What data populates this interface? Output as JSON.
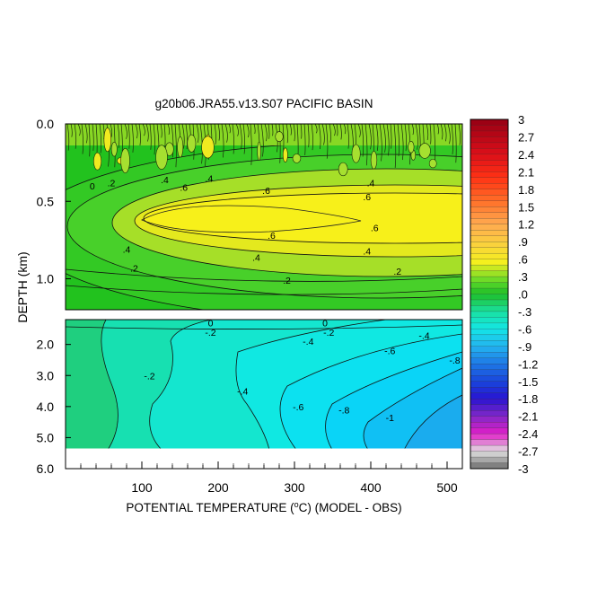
{
  "chart_data": {
    "type": "heatmap",
    "title": "g20b06.JRA55.v13.S07 PACIFIC BASIN",
    "xlabel": "POTENTIAL TEMPERATURE (",
    "xlabel_unit_sup": "o",
    "xlabel_tail": "C) (MODEL - OBS)",
    "ylabel": "DEPTH (km)",
    "xlim": [
      0,
      520
    ],
    "x_ticks": [
      "100",
      "200",
      "300",
      "400",
      "500"
    ],
    "x_tick_values": [
      100,
      200,
      300,
      400,
      500
    ],
    "upper_panel": {
      "ylim": [
        0.0,
        1.2
      ],
      "y_ticks": [
        "0.0",
        "0.5",
        "1.0"
      ],
      "y_tick_values": [
        0.0,
        0.5,
        1.0
      ],
      "contour_labels": [
        {
          "text": "0",
          "x": 35,
          "y": 0.4
        },
        {
          "text": ".2",
          "x": 60,
          "y": 0.38
        },
        {
          "text": ".4",
          "x": 130,
          "y": 0.36
        },
        {
          "text": ".4",
          "x": 188,
          "y": 0.35
        },
        {
          "text": ".4",
          "x": 400,
          "y": 0.38
        },
        {
          "text": ".6",
          "x": 155,
          "y": 0.41
        },
        {
          "text": ".6",
          "x": 263,
          "y": 0.43
        },
        {
          "text": ".6",
          "x": 395,
          "y": 0.47
        },
        {
          "text": ".6",
          "x": 270,
          "y": 0.72
        },
        {
          "text": ".6",
          "x": 405,
          "y": 0.67
        },
        {
          "text": ".4",
          "x": 80,
          "y": 0.81
        },
        {
          "text": ".4",
          "x": 250,
          "y": 0.86
        },
        {
          "text": ".4",
          "x": 395,
          "y": 0.82
        },
        {
          "text": ".2",
          "x": 90,
          "y": 0.93
        },
        {
          "text": ".2",
          "x": 290,
          "y": 1.01
        },
        {
          "text": ".2",
          "x": 435,
          "y": 0.95
        }
      ]
    },
    "lower_panel": {
      "ylim": [
        1.2,
        6.0
      ],
      "y_ticks": [
        "2.0",
        "3.0",
        "4.0",
        "5.0",
        "6.0"
      ],
      "y_tick_values": [
        2.0,
        3.0,
        4.0,
        5.0,
        6.0
      ],
      "data_floor_km": 5.35,
      "contour_labels": [
        {
          "text": "0",
          "x": 190,
          "y": 1.3
        },
        {
          "text": "0",
          "x": 340,
          "y": 1.3
        },
        {
          "text": "-.2",
          "x": 190,
          "y": 1.6
        },
        {
          "text": "-.2",
          "x": 345,
          "y": 1.6
        },
        {
          "text": "-.4",
          "x": 318,
          "y": 1.9
        },
        {
          "text": "-.4",
          "x": 470,
          "y": 1.7
        },
        {
          "text": "-.6",
          "x": 425,
          "y": 2.2
        },
        {
          "text": "-.8",
          "x": 510,
          "y": 2.5
        },
        {
          "text": "-.2",
          "x": 110,
          "y": 3.0
        },
        {
          "text": "-.4",
          "x": 232,
          "y": 3.5
        },
        {
          "text": "-.6",
          "x": 305,
          "y": 4.0
        },
        {
          "text": "-.8",
          "x": 365,
          "y": 4.1
        },
        {
          "text": "-1",
          "x": 425,
          "y": 4.35
        }
      ]
    },
    "colorbar": {
      "labels": [
        "3",
        "2.7",
        "2.4",
        "2.1",
        "1.8",
        "1.5",
        "1.2",
        ".9",
        ".6",
        ".3",
        ".0",
        "-.3",
        "-.6",
        "-.9",
        "-1.2",
        "-1.5",
        "-1.8",
        "-2.1",
        "-2.4",
        "-2.7",
        "-3"
      ],
      "levels": [
        3,
        2.7,
        2.4,
        2.1,
        1.8,
        1.5,
        1.2,
        0.9,
        0.6,
        0.3,
        0.0,
        -0.3,
        -0.6,
        -0.9,
        -1.2,
        -1.5,
        -1.8,
        -2.1,
        -2.4,
        -2.7,
        -3
      ],
      "range": [
        -3,
        3
      ]
    }
  }
}
